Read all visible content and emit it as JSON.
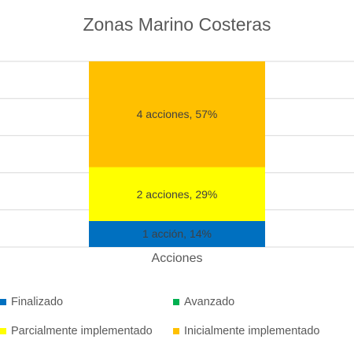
{
  "chart_data": {
    "type": "stacked_bar",
    "title": "Zonas Marino Costeras",
    "categories": [
      "Acciones"
    ],
    "series": [
      {
        "name": "Finalizado",
        "color": "#0070c0",
        "values": [
          14
        ],
        "value_labels": [
          "1 acción, 14%"
        ]
      },
      {
        "name": "Avanzado",
        "color": "#00b050",
        "values": [
          0
        ],
        "value_labels": [
          null
        ]
      },
      {
        "name": "Parcialmente implementado",
        "color": "#ffff00",
        "values": [
          29
        ],
        "value_labels": [
          "2 acciones, 29%"
        ]
      },
      {
        "name": "Inicialmente implementado",
        "color": "#ffc000",
        "values": [
          57
        ],
        "value_labels": [
          "4 acciones, 57%"
        ]
      }
    ],
    "ylim": [
      0,
      100
    ],
    "yticks": [
      0,
      20,
      40,
      60,
      80,
      100
    ],
    "grid": true,
    "legend": "bottom"
  }
}
